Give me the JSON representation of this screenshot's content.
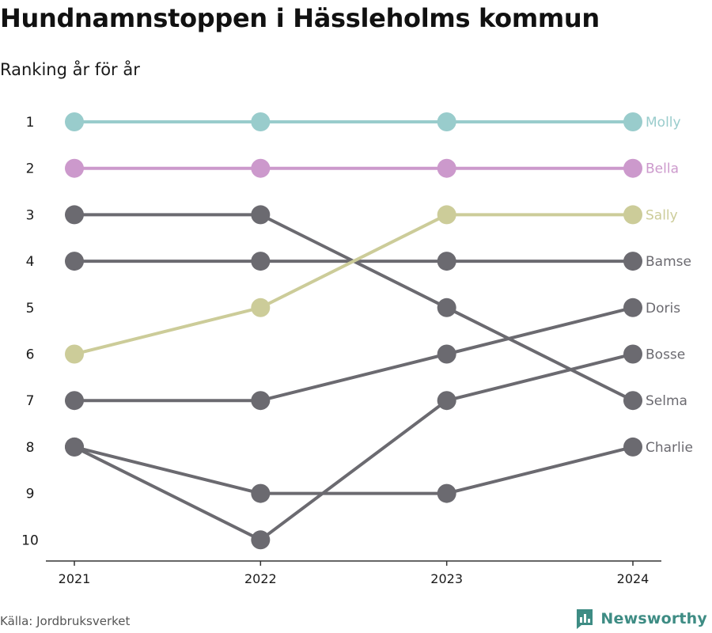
{
  "title": "Hundnamnstoppen i Hässleholms kommun",
  "subtitle": "Ranking år för år",
  "source": "Källa: Jordbruksverket",
  "brand": "Newsworthy",
  "colors": {
    "default": "#6b6a70",
    "axis": "#333333",
    "brand": "#3e8c84"
  },
  "chart_data": {
    "type": "line",
    "title": "Hundnamnstoppen i Hässleholms kommun",
    "subtitle": "Ranking år för år",
    "x": [
      "2021",
      "2022",
      "2023",
      "2024"
    ],
    "y_ticks": [
      "1",
      "2",
      "3",
      "4",
      "5",
      "6",
      "7",
      "8",
      "9",
      "10"
    ],
    "ylim": [
      1,
      10
    ],
    "y_inverted": true,
    "grid": false,
    "legend": "labels at line ends",
    "series": [
      {
        "name": "Selma",
        "values": [
          3,
          3,
          5,
          7
        ],
        "color": "#6b6a70"
      },
      {
        "name": "Bamse",
        "values": [
          4,
          4,
          4,
          4
        ],
        "color": "#6b6a70"
      },
      {
        "name": "Doris",
        "values": [
          7,
          7,
          6,
          5
        ],
        "color": "#6b6a70"
      },
      {
        "name": "Bosse",
        "values": [
          8,
          10,
          7,
          6
        ],
        "color": "#6b6a70"
      },
      {
        "name": "Charlie",
        "values": [
          8,
          9,
          9,
          8
        ],
        "color": "#6b6a70"
      },
      {
        "name": "Sally",
        "values": [
          6,
          5,
          3,
          3
        ],
        "color": "#cccc99"
      },
      {
        "name": "Bella",
        "values": [
          2,
          2,
          2,
          2
        ],
        "color": "#cc99cc"
      },
      {
        "name": "Molly",
        "values": [
          1,
          1,
          1,
          1
        ],
        "color": "#99cccc"
      }
    ]
  }
}
